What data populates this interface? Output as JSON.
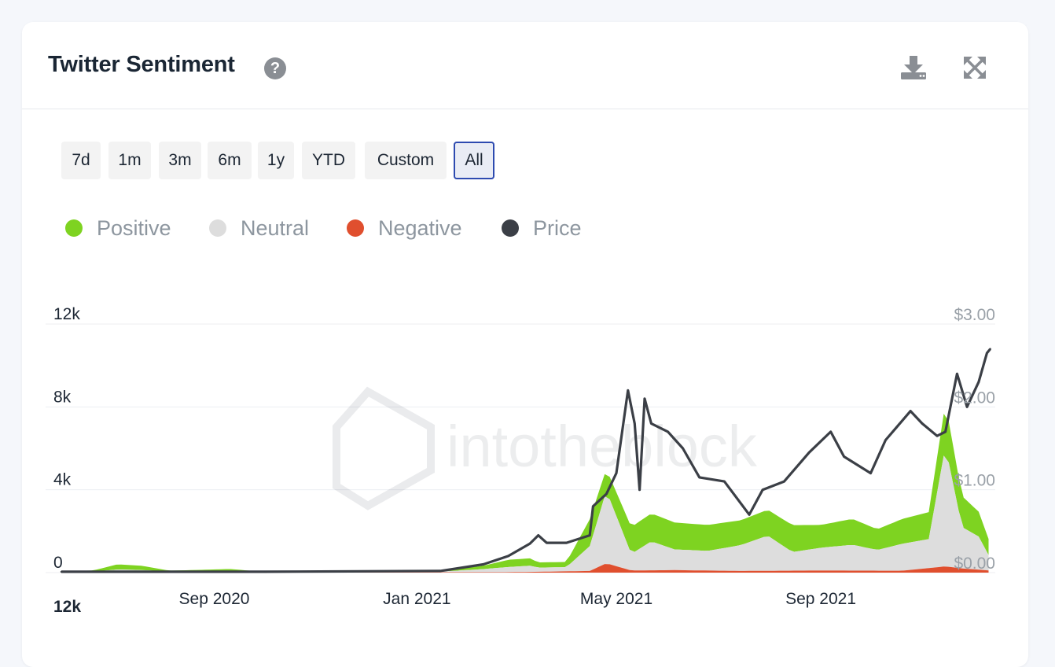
{
  "card": {
    "title": "Twitter Sentiment",
    "help_icon": "question-circle-icon",
    "download_icon": "download-icon",
    "expand_icon": "expand-arrows-icon"
  },
  "ranges": [
    {
      "label": "7d",
      "active": false
    },
    {
      "label": "1m",
      "active": false
    },
    {
      "label": "3m",
      "active": false
    },
    {
      "label": "6m",
      "active": false
    },
    {
      "label": "1y",
      "active": false
    },
    {
      "label": "YTD",
      "active": false
    },
    {
      "label": "Custom",
      "active": false
    },
    {
      "label": "All",
      "active": true
    }
  ],
  "legend": [
    {
      "label": "Positive",
      "color": "#7ed321"
    },
    {
      "label": "Neutral",
      "color": "#dddddd"
    },
    {
      "label": "Negative",
      "color": "#e04f2e"
    },
    {
      "label": "Price",
      "color": "#3b3f46"
    }
  ],
  "watermark": "intotheblock",
  "bottom_label": "12k",
  "chart_data": {
    "type": "area",
    "title": "Twitter Sentiment",
    "x_type": "date",
    "x_range": [
      "2020-06-01",
      "2021-12-15"
    ],
    "x_ticks": [
      {
        "date": "2020-09-01",
        "label": "Sep 2020"
      },
      {
        "date": "2021-01-01",
        "label": "Jan 2021"
      },
      {
        "date": "2021-05-01",
        "label": "May 2021"
      },
      {
        "date": "2021-09-01",
        "label": "Sep 2021"
      }
    ],
    "y_left": {
      "min": 0,
      "max": 12000,
      "ticks": [
        0,
        4000,
        8000,
        12000
      ],
      "tick_labels": [
        "0",
        "4k",
        "8k",
        "12k"
      ]
    },
    "y_right": {
      "min": 0,
      "max": 3,
      "ticks": [
        0,
        1,
        2,
        3
      ],
      "tick_labels": [
        "$0.00",
        "$1.00",
        "$2.00",
        "$3.00"
      ]
    },
    "grid": true,
    "legend_position": "top-left",
    "series": [
      {
        "name": "Positive",
        "stack": "sentiment",
        "axis": "left",
        "points": [
          [
            "2020-06-01",
            40
          ],
          [
            "2020-06-20",
            60
          ],
          [
            "2020-07-05",
            250
          ],
          [
            "2020-07-20",
            200
          ],
          [
            "2020-08-05",
            50
          ],
          [
            "2020-08-25",
            70
          ],
          [
            "2020-09-10",
            90
          ],
          [
            "2020-09-25",
            40
          ],
          [
            "2020-10-15",
            40
          ],
          [
            "2021-01-15",
            40
          ],
          [
            "2021-02-10",
            160
          ],
          [
            "2021-02-25",
            350
          ],
          [
            "2021-03-10",
            350
          ],
          [
            "2021-03-15",
            250
          ],
          [
            "2021-04-01",
            250
          ],
          [
            "2021-04-15",
            1300
          ],
          [
            "2021-04-25",
            1050
          ],
          [
            "2021-05-10",
            1300
          ],
          [
            "2021-05-22",
            1350
          ],
          [
            "2021-06-05",
            1300
          ],
          [
            "2021-06-25",
            1250
          ],
          [
            "2021-07-15",
            1200
          ],
          [
            "2021-07-31",
            1250
          ],
          [
            "2021-08-15",
            1300
          ],
          [
            "2021-09-01",
            1100
          ],
          [
            "2021-09-20",
            1250
          ],
          [
            "2021-10-05",
            1000
          ],
          [
            "2021-10-20",
            1200
          ],
          [
            "2021-11-05",
            1300
          ],
          [
            "2021-11-15",
            2100
          ],
          [
            "2021-11-25",
            1500
          ],
          [
            "2021-12-05",
            1200
          ],
          [
            "2021-12-12",
            700
          ]
        ]
      },
      {
        "name": "Neutral",
        "stack": "sentiment",
        "axis": "left",
        "points": [
          [
            "2020-06-01",
            30
          ],
          [
            "2020-06-20",
            40
          ],
          [
            "2020-07-05",
            150
          ],
          [
            "2020-07-20",
            120
          ],
          [
            "2020-08-05",
            40
          ],
          [
            "2020-08-25",
            60
          ],
          [
            "2020-09-10",
            80
          ],
          [
            "2020-09-25",
            30
          ],
          [
            "2020-10-15",
            20
          ],
          [
            "2021-01-15",
            30
          ],
          [
            "2021-02-10",
            150
          ],
          [
            "2021-02-25",
            250
          ],
          [
            "2021-03-10",
            300
          ],
          [
            "2021-03-15",
            200
          ],
          [
            "2021-04-01",
            200
          ],
          [
            "2021-04-15",
            1200
          ],
          [
            "2021-04-25",
            3500
          ],
          [
            "2021-05-10",
            800
          ],
          [
            "2021-05-22",
            1400
          ],
          [
            "2021-06-05",
            1000
          ],
          [
            "2021-06-25",
            950
          ],
          [
            "2021-07-15",
            1250
          ],
          [
            "2021-07-31",
            1700
          ],
          [
            "2021-08-15",
            900
          ],
          [
            "2021-09-01",
            1100
          ],
          [
            "2021-09-20",
            1250
          ],
          [
            "2021-10-05",
            1000
          ],
          [
            "2021-10-20",
            1300
          ],
          [
            "2021-11-05",
            1400
          ],
          [
            "2021-11-15",
            5800
          ],
          [
            "2021-11-25",
            2000
          ],
          [
            "2021-12-05",
            1600
          ],
          [
            "2021-12-12",
            600
          ]
        ]
      },
      {
        "name": "Negative",
        "stack": "sentiment",
        "axis": "left",
        "points": [
          [
            "2020-06-01",
            0
          ],
          [
            "2021-02-25",
            20
          ],
          [
            "2021-04-15",
            80
          ],
          [
            "2021-04-25",
            450
          ],
          [
            "2021-05-10",
            100
          ],
          [
            "2021-06-05",
            120
          ],
          [
            "2021-07-15",
            80
          ],
          [
            "2021-09-01",
            100
          ],
          [
            "2021-10-20",
            90
          ],
          [
            "2021-11-15",
            300
          ],
          [
            "2021-11-25",
            200
          ],
          [
            "2021-12-12",
            100
          ]
        ]
      },
      {
        "name": "Price",
        "axis": "right",
        "points": [
          [
            "2020-06-01",
            0.01
          ],
          [
            "2020-10-01",
            0.01
          ],
          [
            "2021-01-15",
            0.02
          ],
          [
            "2021-02-10",
            0.1
          ],
          [
            "2021-02-25",
            0.2
          ],
          [
            "2021-03-10",
            0.35
          ],
          [
            "2021-03-15",
            0.45
          ],
          [
            "2021-03-20",
            0.36
          ],
          [
            "2021-04-01",
            0.36
          ],
          [
            "2021-04-15",
            0.45
          ],
          [
            "2021-04-17",
            0.8
          ],
          [
            "2021-04-25",
            0.95
          ],
          [
            "2021-05-01",
            1.2
          ],
          [
            "2021-05-08",
            2.2
          ],
          [
            "2021-05-12",
            1.8
          ],
          [
            "2021-05-15",
            1.0
          ],
          [
            "2021-05-18",
            2.1
          ],
          [
            "2021-05-22",
            1.8
          ],
          [
            "2021-06-01",
            1.7
          ],
          [
            "2021-06-10",
            1.5
          ],
          [
            "2021-06-20",
            1.15
          ],
          [
            "2021-07-05",
            1.1
          ],
          [
            "2021-07-20",
            0.7
          ],
          [
            "2021-07-28",
            1.0
          ],
          [
            "2021-08-10",
            1.1
          ],
          [
            "2021-08-25",
            1.45
          ],
          [
            "2021-09-07",
            1.7
          ],
          [
            "2021-09-15",
            1.4
          ],
          [
            "2021-10-01",
            1.2
          ],
          [
            "2021-10-10",
            1.6
          ],
          [
            "2021-10-25",
            1.95
          ],
          [
            "2021-11-01",
            1.8
          ],
          [
            "2021-11-10",
            1.65
          ],
          [
            "2021-11-15",
            1.7
          ],
          [
            "2021-11-22",
            2.4
          ],
          [
            "2021-11-28",
            2.0
          ],
          [
            "2021-12-05",
            2.3
          ],
          [
            "2021-12-10",
            2.65
          ],
          [
            "2021-12-12",
            2.7
          ]
        ]
      }
    ]
  }
}
